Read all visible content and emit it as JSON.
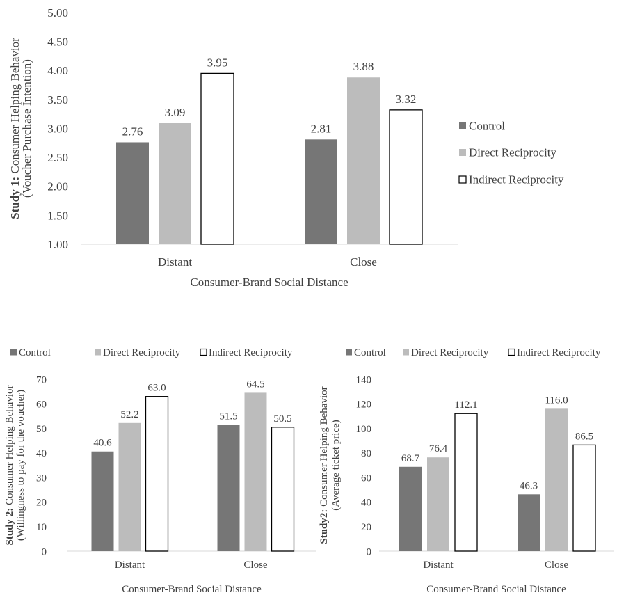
{
  "chart_data": [
    {
      "type": "bar",
      "categories": [
        "Distant",
        "Close"
      ],
      "series": [
        {
          "name": "Control",
          "values": [
            2.76,
            2.81
          ],
          "color": "#767676"
        },
        {
          "name": "Direct Reciprocity",
          "values": [
            3.09,
            3.88
          ],
          "color": "#bcbcbc"
        },
        {
          "name": "Indirect Reciprocity",
          "values": [
            3.95,
            3.32
          ],
          "color": "#ffffff"
        }
      ],
      "data_labels": [
        [
          "2.76",
          "3.09",
          "3.95"
        ],
        [
          "2.81",
          "3.88",
          "3.32"
        ]
      ],
      "ylabel_bold": "Study 1:",
      "ylabel_rest": "Consumer Helping Behavior",
      "ylabel_line2": "(Voucher Purchase Intention)",
      "xlabel": "Consumer-Brand Social Distance",
      "ylim": [
        1.0,
        5.0
      ],
      "yticks": [
        "1.00",
        "1.50",
        "2.00",
        "2.50",
        "3.00",
        "3.50",
        "4.00",
        "4.50",
        "5.00"
      ],
      "grid": false,
      "legend_position": "right"
    },
    {
      "type": "bar",
      "categories": [
        "Distant",
        "Close"
      ],
      "series": [
        {
          "name": "Control",
          "values": [
            40.6,
            51.5
          ],
          "color": "#767676"
        },
        {
          "name": "Direct Reciprocity",
          "values": [
            52.2,
            64.5
          ],
          "color": "#bcbcbc"
        },
        {
          "name": "Indirect Reciprocity",
          "values": [
            63.0,
            50.5
          ],
          "color": "#ffffff"
        }
      ],
      "data_labels": [
        [
          "40.6",
          "52.2",
          "63.0"
        ],
        [
          "51.5",
          "64.5",
          "50.5"
        ]
      ],
      "ylabel_bold": "Study 2:",
      "ylabel_rest": "Consumer Helping Behavior",
      "ylabel_line2": "(Willingness to pay for the voucher)",
      "xlabel": "Consumer-Brand Social Distance",
      "ylim": [
        0,
        70
      ],
      "yticks": [
        "0",
        "10",
        "20",
        "30",
        "40",
        "50",
        "60",
        "70"
      ],
      "grid": false,
      "legend_position": "top"
    },
    {
      "type": "bar",
      "categories": [
        "Distant",
        "Close"
      ],
      "series": [
        {
          "name": "Control",
          "values": [
            68.7,
            46.3
          ],
          "color": "#767676"
        },
        {
          "name": "Direct Reciprocity",
          "values": [
            76.4,
            116.0
          ],
          "color": "#bcbcbc"
        },
        {
          "name": "Indirect Reciprocity",
          "values": [
            112.1,
            86.5
          ],
          "color": "#ffffff"
        }
      ],
      "data_labels": [
        [
          "68.7",
          "76.4",
          "112.1"
        ],
        [
          "46.3",
          "116.0",
          "86.5"
        ]
      ],
      "ylabel_bold": "Study2:",
      "ylabel_rest": "Consumer Helping Behavior",
      "ylabel_line2": "(Average ticket price)",
      "xlabel": "Consumer-Brand Social Distance",
      "ylim": [
        0,
        140
      ],
      "yticks": [
        "0",
        "20",
        "40",
        "60",
        "80",
        "100",
        "120",
        "140"
      ],
      "grid": false,
      "legend_position": "top"
    }
  ]
}
